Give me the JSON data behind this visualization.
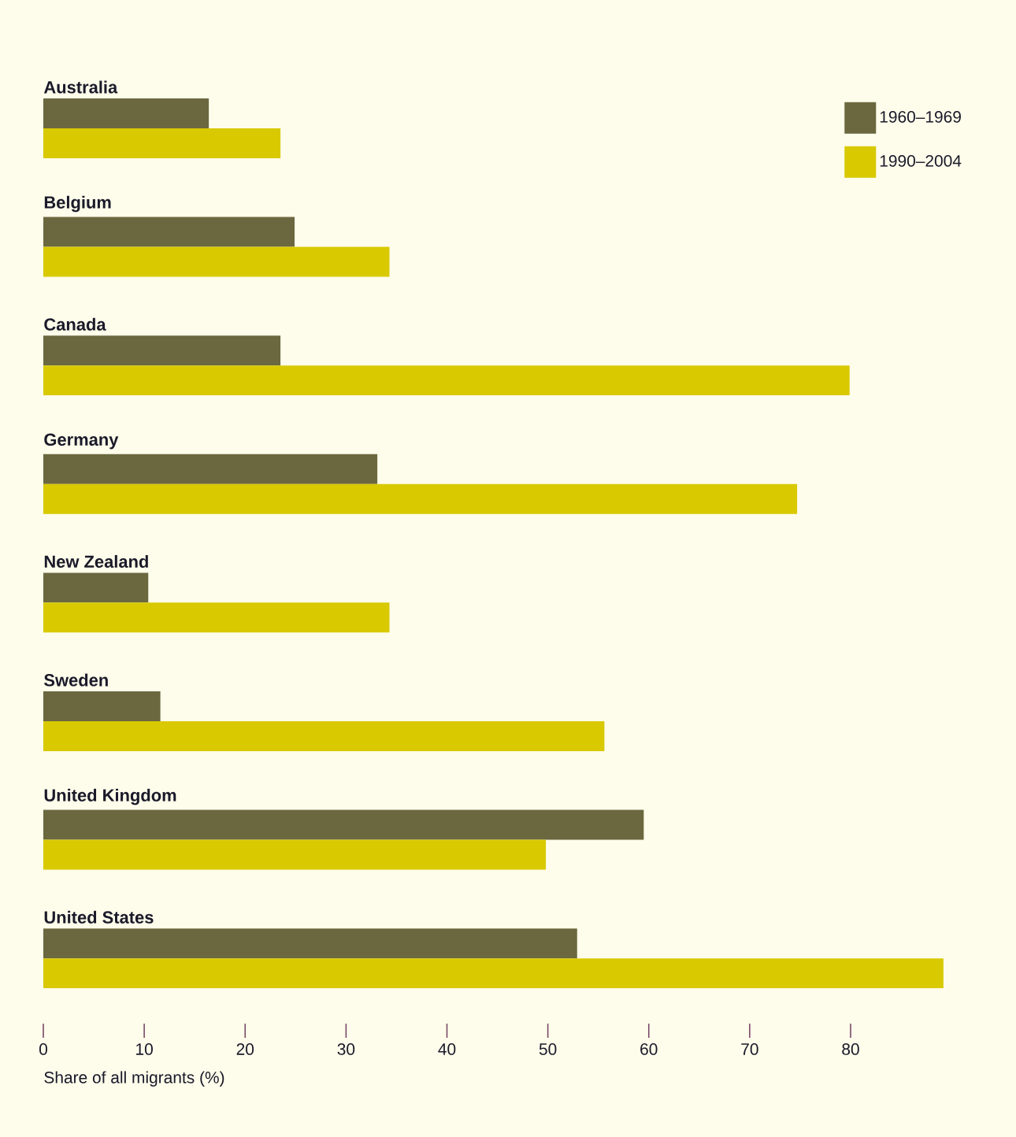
{
  "chart_data": {
    "type": "bar",
    "orientation": "horizontal",
    "xlabel": "Share of all migrants (%)",
    "categories": [
      "Australia",
      "Belgium",
      "Canada",
      "Germany",
      "New Zealand",
      "Sweden",
      "United Kingdom",
      "United States"
    ],
    "series": [
      {
        "name": "1960–1969",
        "color": "#6b6840",
        "values": [
          16.4,
          24.9,
          23.5,
          33.1,
          10.4,
          11.6,
          59.5,
          52.9
        ]
      },
      {
        "name": "1990–2004",
        "color": "#d9c900",
        "values": [
          23.5,
          34.3,
          79.9,
          74.7,
          34.3,
          55.6,
          49.8,
          89.2
        ]
      }
    ],
    "xlim": [
      0,
      89.2
    ],
    "xticks": [
      0,
      10,
      20,
      30,
      40,
      50,
      60,
      70,
      80
    ],
    "grid": false,
    "legend": "top right"
  }
}
